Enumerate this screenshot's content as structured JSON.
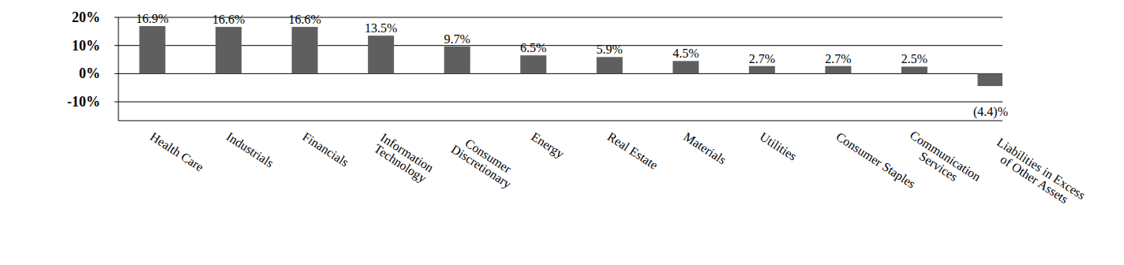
{
  "chart_data": {
    "type": "bar",
    "categories": [
      "Health Care",
      "Industrials",
      "Financials",
      "Information\nTechnology",
      "Consumer\nDiscretionary",
      "Energy",
      "Real Estate",
      "Materials",
      "Utilities",
      "Consumer Staples",
      "Communication\nServices",
      "Liabilities in Excess\nof Other Assets"
    ],
    "values": [
      16.9,
      16.6,
      16.6,
      13.5,
      9.7,
      6.5,
      5.9,
      4.5,
      2.7,
      2.7,
      2.5,
      -4.4
    ],
    "value_labels": [
      "16.9%",
      "16.6%",
      "16.6%",
      "13.5%",
      "9.7%",
      "6.5%",
      "5.9%",
      "4.5%",
      "2.7%",
      "2.7%",
      "2.5%",
      "(4.4)%"
    ],
    "color": "#5f5f5f",
    "ylim": [
      -16.7,
      20
    ],
    "yticks": [
      {
        "value": 20,
        "label": "20%"
      },
      {
        "value": 10,
        "label": "10%"
      },
      {
        "value": 0,
        "label": "0%"
      },
      {
        "value": -10,
        "label": "-10%"
      }
    ],
    "grid": true,
    "data_labels": true
  }
}
